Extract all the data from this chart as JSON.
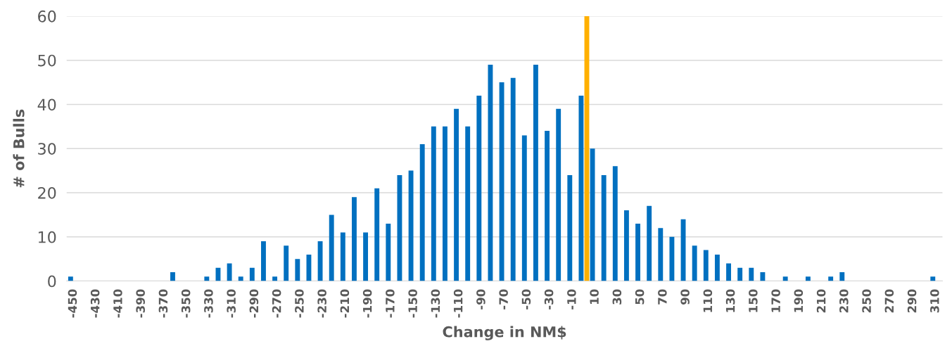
{
  "chart_data": {
    "type": "bar",
    "xlabel": "Change in NM$",
    "ylabel": "# of Bulls",
    "categories": [
      "-450",
      null,
      "-430",
      null,
      "-410",
      null,
      "-390",
      null,
      "-370",
      null,
      "-350",
      null,
      "-330",
      null,
      "-310",
      null,
      "-290",
      null,
      "-270",
      null,
      "-250",
      null,
      "-230",
      null,
      "-210",
      null,
      "-190",
      null,
      "-170",
      null,
      "-150",
      null,
      "-130",
      null,
      "-110",
      null,
      "-90",
      null,
      "-70",
      null,
      "-50",
      null,
      "-30",
      null,
      "-10",
      null,
      "10",
      null,
      "30",
      null,
      "50",
      null,
      "70",
      null,
      "90",
      null,
      "110",
      null,
      "130",
      null,
      "150",
      null,
      "170",
      null,
      "190",
      null,
      "210",
      null,
      "230",
      null,
      "250",
      null,
      "270",
      null,
      "290",
      null,
      "310"
    ],
    "series": [
      {
        "color": "#0070c0",
        "values": [
          1,
          0,
          0,
          0,
          0,
          0,
          0,
          0,
          0,
          2,
          0,
          0,
          1,
          3,
          4,
          1,
          3,
          9,
          1,
          8,
          5,
          6,
          9,
          15,
          11,
          19,
          11,
          21,
          13,
          24,
          25,
          31,
          35,
          35,
          39,
          35,
          42,
          49,
          45,
          46,
          33,
          49,
          34,
          39,
          24,
          42,
          30,
          24,
          26,
          16,
          13,
          17,
          12,
          10,
          14,
          8,
          7,
          6,
          4,
          3,
          3,
          2,
          0,
          1,
          0,
          1,
          0,
          1,
          2,
          0,
          0,
          0,
          0,
          0,
          0,
          0,
          1
        ]
      },
      {
        "color": "#ffb000",
        "values": [
          null,
          null,
          null,
          null,
          null,
          null,
          null,
          null,
          null,
          null,
          null,
          null,
          null,
          null,
          null,
          null,
          null,
          null,
          null,
          null,
          null,
          null,
          null,
          null,
          null,
          null,
          null,
          null,
          null,
          null,
          null,
          null,
          null,
          null,
          null,
          null,
          null,
          null,
          null,
          null,
          null,
          null,
          null,
          null,
          null,
          60,
          null,
          null,
          null,
          null,
          null,
          null,
          null,
          null,
          null,
          null,
          null,
          null,
          null,
          null,
          null,
          null,
          null,
          null,
          null,
          null,
          null,
          null,
          null,
          null,
          null,
          null,
          null,
          null,
          null,
          null,
          null
        ]
      }
    ],
    "ylim": [
      0,
      60
    ],
    "yticks": [
      0,
      10,
      20,
      30,
      40,
      50,
      60
    ],
    "grid": "y"
  }
}
